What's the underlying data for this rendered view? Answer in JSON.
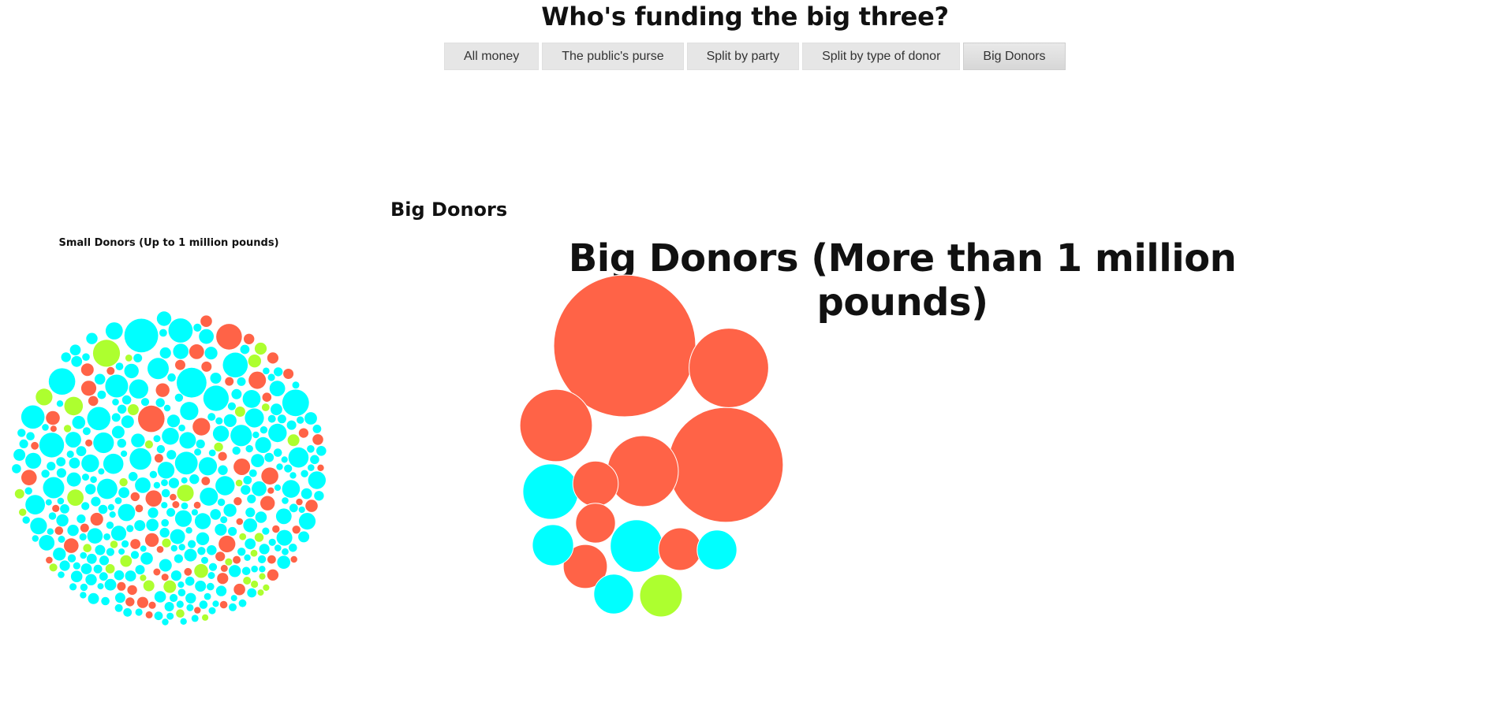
{
  "page": {
    "title": "Who's funding the big three?"
  },
  "buttons": [
    {
      "label": "All money",
      "active": false
    },
    {
      "label": "The public's purse",
      "active": false
    },
    {
      "label": "Split by party",
      "active": false
    },
    {
      "label": "Split by type of donor",
      "active": false
    },
    {
      "label": "Big Donors",
      "active": true
    }
  ],
  "section": {
    "heading": "Big Donors"
  },
  "colors": {
    "red": "#ff6347",
    "cyan": "#00ffff",
    "green": "#adff2f",
    "background": "#ffffff"
  },
  "chart_data": [
    {
      "type": "bubble-pack",
      "title": "Small Donors (Up to 1 million pounds)",
      "bubble_colors": [
        "cyan",
        "red",
        "green"
      ],
      "bubble_counts": {
        "total_approx": 780,
        "red_approx": 110,
        "green_approx": 70
      }
    },
    {
      "type": "bubble-pack",
      "title": "Big Donors (More than 1 million pounds)",
      "bubbles": [
        {
          "color": "red",
          "relative_size": 1.0
        },
        {
          "color": "red",
          "relative_size": 0.81
        },
        {
          "color": "red",
          "relative_size": 0.56
        },
        {
          "color": "red",
          "relative_size": 0.51
        },
        {
          "color": "red",
          "relative_size": 0.5
        },
        {
          "color": "cyan",
          "relative_size": 0.39
        },
        {
          "color": "cyan",
          "relative_size": 0.37
        },
        {
          "color": "red",
          "relative_size": 0.32
        },
        {
          "color": "red",
          "relative_size": 0.31
        },
        {
          "color": "green",
          "relative_size": 0.3
        },
        {
          "color": "red",
          "relative_size": 0.3
        },
        {
          "color": "cyan",
          "relative_size": 0.29
        },
        {
          "color": "cyan",
          "relative_size": 0.28
        },
        {
          "color": "cyan",
          "relative_size": 0.28
        },
        {
          "color": "red",
          "relative_size": 0.28
        }
      ]
    }
  ]
}
